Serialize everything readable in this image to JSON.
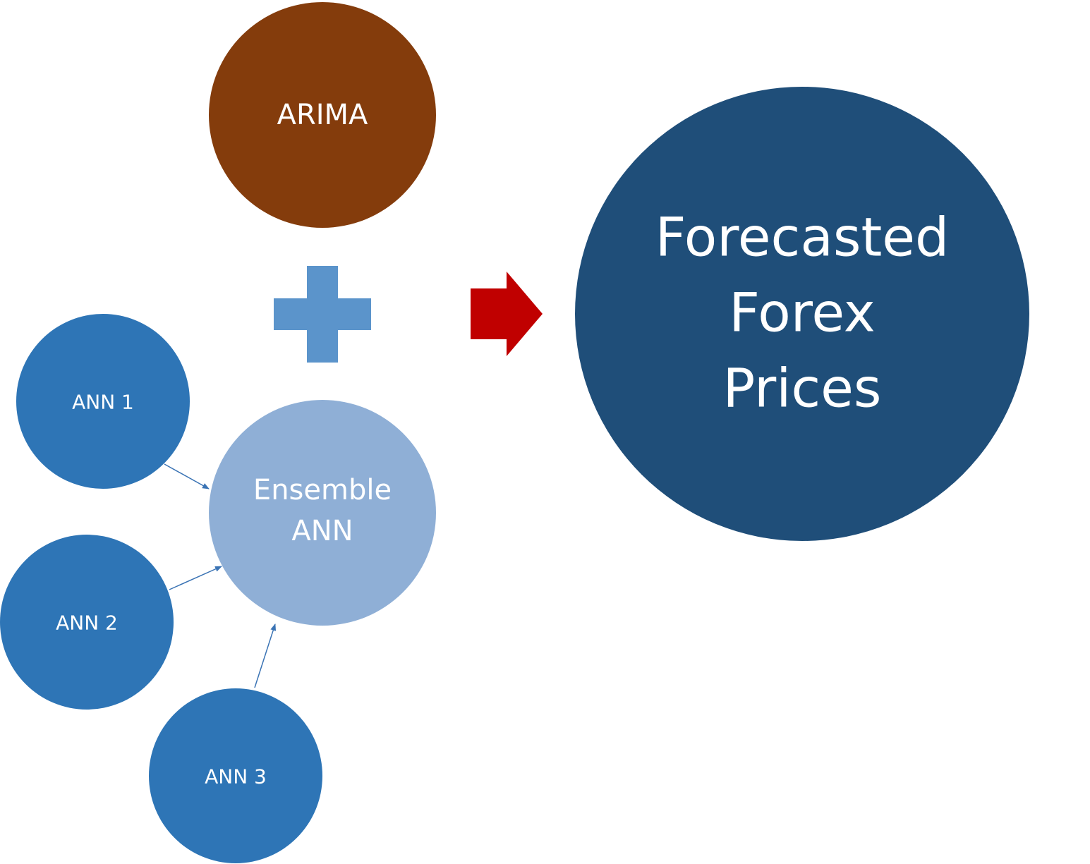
{
  "colors": {
    "arima": "#843C0C",
    "ann": "#2E75B6",
    "ensemble": "#8FAFD6",
    "forecast": "#1F4E79",
    "plus": "#5B94CB",
    "arrow": "#C00000",
    "connector": "#3A73B4"
  },
  "nodes": {
    "arima": {
      "label": "ARIMA"
    },
    "ensemble": {
      "line1": "Ensemble",
      "line2": "ANN"
    },
    "ann1": {
      "label": "ANN 1"
    },
    "ann2": {
      "label": "ANN 2"
    },
    "ann3": {
      "label": "ANN 3"
    },
    "forecast": {
      "line1": "Forecasted",
      "line2": "Forex",
      "line3": "Prices"
    }
  },
  "icons": {
    "plus": "plus-icon",
    "arrow": "right-arrow-icon"
  }
}
